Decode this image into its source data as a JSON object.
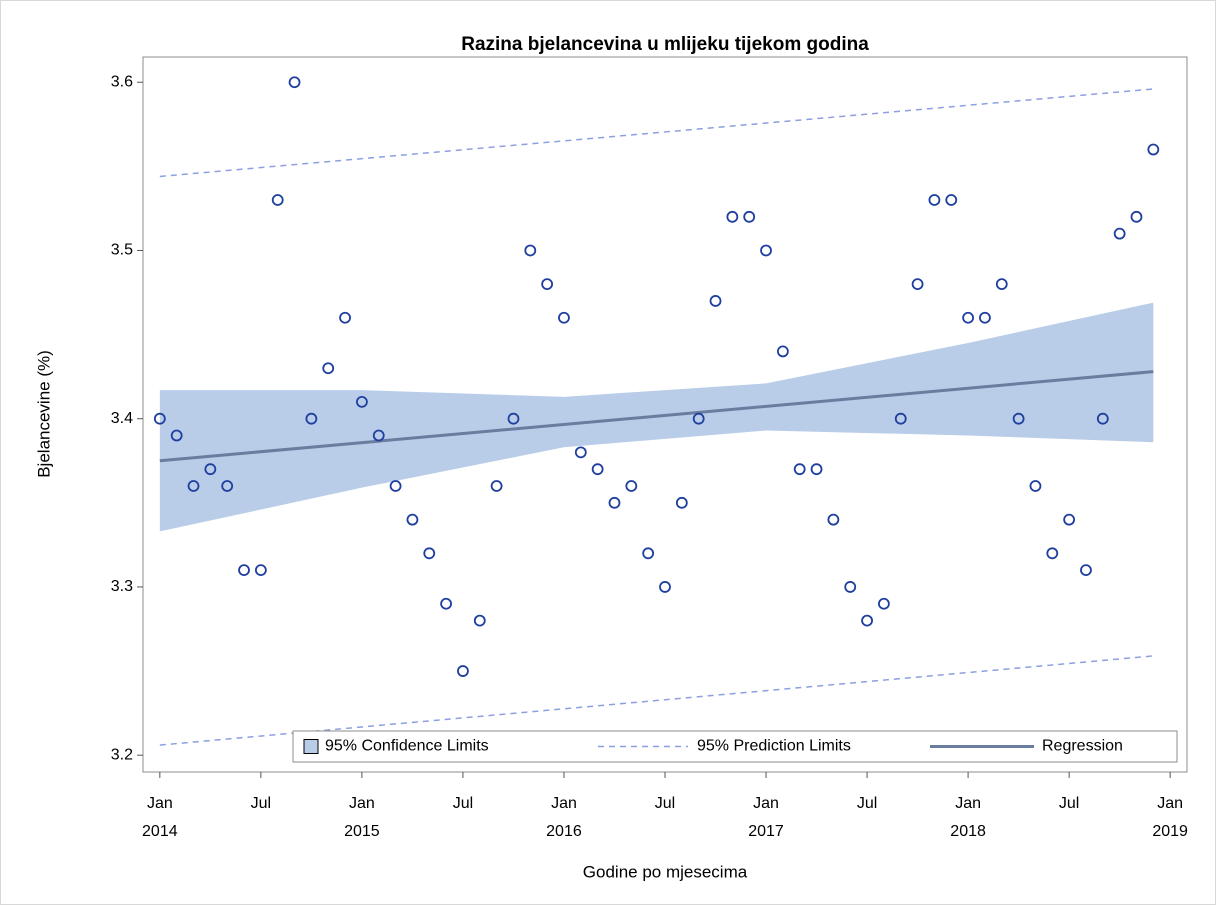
{
  "chart_data": {
    "type": "scatter",
    "title": "Razina bjelancevina u mlijeku tijekom godina",
    "xlabel": "Godine po mjesecima",
    "ylabel": "Bjelancevine (%)",
    "x": [
      "2014-01",
      "2014-02",
      "2014-03",
      "2014-04",
      "2014-05",
      "2014-06",
      "2014-07",
      "2014-08",
      "2014-09",
      "2014-10",
      "2014-11",
      "2014-12",
      "2015-01",
      "2015-02",
      "2015-03",
      "2015-04",
      "2015-05",
      "2015-06",
      "2015-07",
      "2015-08",
      "2015-09",
      "2015-10",
      "2015-11",
      "2015-12",
      "2016-01",
      "2016-02",
      "2016-03",
      "2016-04",
      "2016-05",
      "2016-06",
      "2016-07",
      "2016-08",
      "2016-09",
      "2016-10",
      "2016-11",
      "2016-12",
      "2017-01",
      "2017-02",
      "2017-03",
      "2017-04",
      "2017-05",
      "2017-06",
      "2017-07",
      "2017-08",
      "2017-09",
      "2017-10",
      "2017-11",
      "2017-12",
      "2018-01",
      "2018-02",
      "2018-03",
      "2018-04",
      "2018-05",
      "2018-06",
      "2018-07",
      "2018-08",
      "2018-09",
      "2018-10",
      "2018-11",
      "2018-12"
    ],
    "values": [
      3.4,
      3.39,
      3.36,
      3.37,
      3.36,
      3.31,
      3.31,
      3.53,
      3.6,
      3.4,
      3.43,
      3.46,
      3.41,
      3.39,
      3.36,
      3.34,
      3.32,
      3.29,
      3.25,
      3.28,
      3.36,
      3.4,
      3.5,
      3.48,
      3.46,
      3.38,
      3.37,
      3.35,
      3.36,
      3.32,
      3.3,
      3.35,
      3.4,
      3.47,
      3.52,
      3.52,
      3.5,
      3.44,
      3.37,
      3.37,
      3.34,
      3.3,
      3.28,
      3.29,
      3.4,
      3.48,
      3.53,
      3.53,
      3.46,
      3.46,
      3.48,
      3.4,
      3.36,
      3.32,
      3.34,
      3.31,
      3.4,
      3.51,
      3.52,
      3.56
    ],
    "color": "#1f3f9f",
    "series": [
      {
        "name": "95% Confidence Limits",
        "color": "#b9cde9",
        "x": [
          "2014-01",
          "2015-01",
          "2016-01",
          "2017-01",
          "2018-01",
          "2018-12"
        ],
        "lower": [
          3.333,
          3.359,
          3.383,
          3.393,
          3.39,
          3.386
        ],
        "upper": [
          3.417,
          3.417,
          3.413,
          3.421,
          3.445,
          3.469
        ]
      },
      {
        "name": "95% Prediction Limits",
        "color": "#8c9fe0",
        "x": [
          "2014-01",
          "2018-12"
        ],
        "lower": [
          3.206,
          3.259
        ],
        "upper": [
          3.544,
          3.596
        ]
      },
      {
        "name": "Regression",
        "color": "#6b7d9f",
        "x": [
          "2014-01",
          "2018-12"
        ],
        "values": [
          3.375,
          3.428
        ]
      }
    ],
    "xlim": [
      "2013-12",
      "2019-02"
    ],
    "xticks": [
      {
        "value": "2014-01",
        "label": "Jan 2014"
      },
      {
        "value": "2014-07",
        "label": "Jul"
      },
      {
        "value": "2015-01",
        "label": "Jan 2015"
      },
      {
        "value": "2015-07",
        "label": "Jul"
      },
      {
        "value": "2016-01",
        "label": "Jan 2016"
      },
      {
        "value": "2016-07",
        "label": "Jul"
      },
      {
        "value": "2017-01",
        "label": "Jan 2017"
      },
      {
        "value": "2017-07",
        "label": "Jul"
      },
      {
        "value": "2018-01",
        "label": "Jan 2018"
      },
      {
        "value": "2018-07",
        "label": "Jul"
      },
      {
        "value": "2019-01",
        "label": "Jan 2019"
      }
    ],
    "ylim": [
      3.19,
      3.615
    ],
    "yticks": [
      3.2,
      3.3,
      3.4,
      3.5,
      3.6
    ]
  }
}
